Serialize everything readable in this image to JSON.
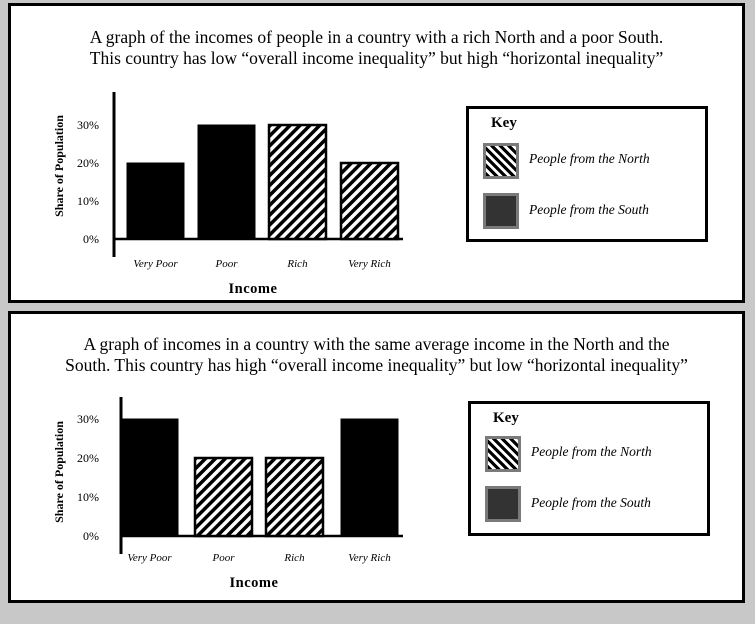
{
  "colors": {
    "north_pattern": "#000000",
    "south_fill": "#333333",
    "border": "#000000",
    "frame": "#c8c8c8"
  },
  "panels": [
    {
      "title_line1": "A graph of the incomes of people in a country with a rich North and a poor South.",
      "title_line2": "This country has low “overall income inequality” but high “horizontal inequality”",
      "legend": {
        "title": "Key",
        "north": "People from the North",
        "south": "People from the South"
      }
    },
    {
      "title_line1": "A graph of incomes in a country with the same average income in the North and the",
      "title_line2": "South. This country has high “overall income inequality” but low “horizontal inequality”",
      "legend": {
        "title": "Key",
        "north": "People from the North",
        "south": "People from the South"
      }
    }
  ],
  "chart_data": [
    {
      "type": "bar",
      "categories": [
        "Very Poor",
        "Poor",
        "Rich",
        "Very Rich"
      ],
      "values": [
        20,
        30,
        30,
        20
      ],
      "group": [
        "South",
        "South",
        "North",
        "North"
      ],
      "yticks": [
        "0%",
        "10%",
        "20%",
        "30%"
      ],
      "ytick_values": [
        0,
        10,
        20,
        30
      ],
      "ylim": [
        0,
        35
      ],
      "xlabel": "Income",
      "ylabel": "Share of Population",
      "legend_position": "right"
    },
    {
      "type": "bar",
      "categories": [
        "Very Poor",
        "Poor",
        "Rich",
        "Very Rich"
      ],
      "values": [
        30,
        20,
        20,
        30
      ],
      "group": [
        "South",
        "North",
        "North",
        "South"
      ],
      "yticks": [
        "0%",
        "10%",
        "20%",
        "30%"
      ],
      "ytick_values": [
        0,
        10,
        20,
        30
      ],
      "ylim": [
        0,
        35
      ],
      "xlabel": "Income",
      "ylabel": "Share of Population",
      "legend_position": "right"
    }
  ]
}
